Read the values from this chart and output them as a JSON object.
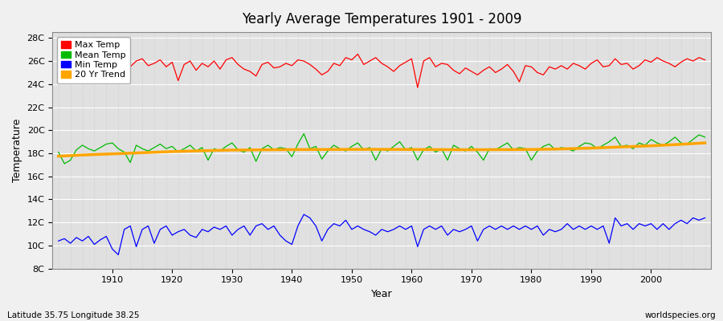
{
  "title": "Yearly Average Temperatures 1901 - 2009",
  "ylabel": "Temperature",
  "xlabel": "Year",
  "bottom_left_text": "Latitude 35.75 Longitude 38.25",
  "bottom_right_text": "worldspecies.org",
  "background_color": "#f0f0f0",
  "plot_bg_color": "#e0e0e0",
  "grid_color_h": "#ffffff",
  "grid_color_v": "#cccccc",
  "years_start": 1901,
  "years_end": 2009,
  "yticks": [
    8,
    10,
    12,
    14,
    16,
    18,
    20,
    22,
    24,
    26,
    28
  ],
  "ytick_labels": [
    "8C",
    "10C",
    "12C",
    "14C",
    "16C",
    "18C",
    "20C",
    "22C",
    "24C",
    "26C",
    "28C"
  ],
  "ylim": [
    8,
    28.5
  ],
  "xlim_start": 1900,
  "xlim_end": 2010,
  "max_temp_color": "#ff0000",
  "mean_temp_color": "#00bb00",
  "min_temp_color": "#0000ff",
  "trend_color": "#ffa500",
  "legend_labels": [
    "Max Temp",
    "Mean Temp",
    "Min Temp",
    "20 Yr Trend"
  ],
  "max_temps": [
    25.3,
    24.8,
    25.5,
    25.2,
    25.1,
    25.9,
    25.4,
    25.0,
    25.6,
    24.9,
    25.3,
    25.9,
    25.5,
    26.0,
    26.2,
    25.6,
    25.8,
    26.1,
    25.5,
    25.9,
    24.3,
    25.7,
    26.0,
    25.2,
    25.8,
    25.5,
    26.0,
    25.3,
    26.1,
    26.3,
    25.7,
    25.3,
    25.1,
    24.7,
    25.7,
    25.9,
    25.4,
    25.5,
    25.8,
    25.6,
    26.1,
    26.0,
    25.7,
    25.3,
    24.8,
    25.1,
    25.8,
    25.6,
    26.3,
    26.1,
    26.6,
    25.7,
    26.0,
    26.3,
    25.8,
    25.5,
    25.1,
    25.6,
    25.9,
    26.2,
    23.7,
    26.0,
    26.3,
    25.5,
    25.8,
    25.7,
    25.2,
    24.9,
    25.4,
    25.1,
    24.8,
    25.2,
    25.5,
    25.0,
    25.3,
    25.7,
    25.1,
    24.2,
    25.6,
    25.5,
    25.0,
    24.8,
    25.5,
    25.3,
    25.6,
    25.3,
    25.8,
    25.6,
    25.3,
    25.8,
    26.1,
    25.5,
    25.6,
    26.2,
    25.7,
    25.8,
    25.3,
    25.6,
    26.1,
    25.9,
    26.3,
    26.0,
    25.8,
    25.5,
    25.9,
    26.2,
    26.0,
    26.3,
    26.1
  ],
  "mean_temps": [
    18.1,
    17.1,
    17.4,
    18.3,
    18.7,
    18.4,
    18.2,
    18.5,
    18.8,
    18.9,
    18.4,
    18.1,
    17.2,
    18.7,
    18.4,
    18.2,
    18.5,
    18.8,
    18.4,
    18.6,
    18.1,
    18.4,
    18.7,
    18.2,
    18.5,
    17.4,
    18.4,
    18.2,
    18.6,
    18.9,
    18.3,
    18.1,
    18.5,
    17.3,
    18.4,
    18.7,
    18.3,
    18.5,
    18.4,
    17.7,
    18.8,
    19.7,
    18.4,
    18.6,
    17.5,
    18.2,
    18.7,
    18.4,
    18.2,
    18.6,
    18.9,
    18.3,
    18.5,
    17.4,
    18.4,
    18.2,
    18.6,
    19.0,
    18.3,
    18.5,
    17.4,
    18.3,
    18.6,
    18.1,
    18.4,
    17.4,
    18.7,
    18.4,
    18.2,
    18.6,
    18.1,
    17.4,
    18.4,
    18.3,
    18.6,
    18.9,
    18.3,
    18.5,
    18.4,
    17.4,
    18.2,
    18.6,
    18.8,
    18.3,
    18.5,
    18.4,
    18.2,
    18.6,
    18.9,
    18.8,
    18.4,
    18.7,
    19.0,
    19.4,
    18.6,
    18.7,
    18.4,
    18.9,
    18.7,
    19.2,
    18.9,
    18.7,
    19.0,
    19.4,
    18.9,
    18.8,
    19.2,
    19.6,
    19.4
  ],
  "min_temps": [
    10.4,
    10.6,
    10.2,
    10.7,
    10.4,
    10.8,
    10.1,
    10.5,
    10.8,
    9.7,
    9.2,
    11.4,
    11.7,
    9.9,
    11.4,
    11.7,
    10.2,
    11.4,
    11.7,
    10.9,
    11.2,
    11.4,
    10.9,
    10.7,
    11.4,
    11.2,
    11.6,
    11.4,
    11.7,
    10.9,
    11.4,
    11.7,
    10.9,
    11.7,
    11.9,
    11.4,
    11.7,
    10.9,
    10.4,
    10.1,
    11.7,
    12.7,
    12.4,
    11.7,
    10.4,
    11.4,
    11.9,
    11.7,
    12.2,
    11.4,
    11.7,
    11.4,
    11.2,
    10.9,
    11.4,
    11.2,
    11.4,
    11.7,
    11.4,
    11.7,
    9.9,
    11.4,
    11.7,
    11.4,
    11.7,
    10.9,
    11.4,
    11.2,
    11.4,
    11.7,
    10.4,
    11.4,
    11.7,
    11.4,
    11.7,
    11.4,
    11.7,
    11.4,
    11.7,
    11.4,
    11.7,
    10.9,
    11.4,
    11.2,
    11.4,
    11.9,
    11.4,
    11.7,
    11.4,
    11.7,
    11.4,
    11.7,
    10.2,
    12.4,
    11.7,
    11.9,
    11.4,
    11.9,
    11.7,
    11.9,
    11.4,
    11.9,
    11.4,
    11.9,
    12.2,
    11.9,
    12.4,
    12.2,
    12.4
  ],
  "trend_x": [
    1901,
    1905,
    1910,
    1915,
    1920,
    1925,
    1930,
    1935,
    1940,
    1945,
    1950,
    1955,
    1960,
    1965,
    1970,
    1975,
    1980,
    1985,
    1990,
    1995,
    2000,
    2005,
    2009
  ],
  "trend_y": [
    17.75,
    17.85,
    17.95,
    18.05,
    18.15,
    18.22,
    18.28,
    18.3,
    18.32,
    18.33,
    18.34,
    18.34,
    18.33,
    18.32,
    18.31,
    18.32,
    18.33,
    18.38,
    18.45,
    18.55,
    18.65,
    18.78,
    18.9
  ]
}
